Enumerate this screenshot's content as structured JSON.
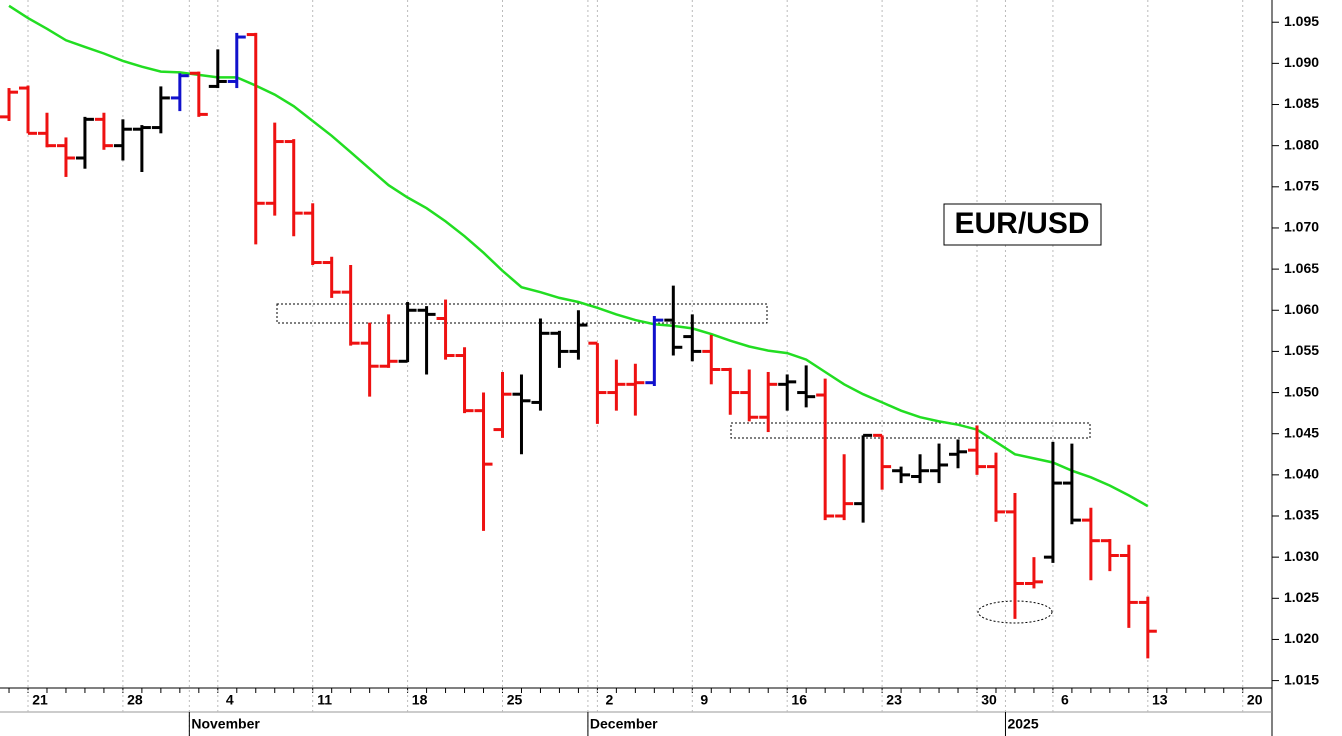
{
  "chart_data": {
    "type": "ohlc",
    "annotation": "EUR/USD",
    "categories": [
      null,
      "21",
      null,
      null,
      null,
      null,
      "28",
      null,
      null,
      null,
      null,
      "4",
      null,
      null,
      null,
      null,
      "11",
      null,
      null,
      null,
      null,
      "18",
      null,
      null,
      null,
      null,
      "25",
      null,
      null,
      null,
      null,
      "2",
      null,
      null,
      null,
      null,
      "9",
      null,
      null,
      null,
      null,
      "16",
      null,
      null,
      null,
      null,
      "23",
      null,
      null,
      null,
      null,
      "30",
      null,
      null,
      null,
      "6",
      null,
      null,
      null,
      null,
      "13",
      null,
      null,
      null,
      null,
      "20"
    ],
    "month_labels": [
      null,
      null,
      null,
      null,
      null,
      null,
      null,
      null,
      null,
      null,
      "November",
      null,
      null,
      null,
      null,
      null,
      null,
      null,
      null,
      null,
      null,
      null,
      null,
      null,
      null,
      null,
      null,
      null,
      null,
      null,
      null,
      "December",
      null,
      null,
      null,
      null,
      null,
      null,
      null,
      null,
      null,
      null,
      null,
      null,
      null,
      null,
      null,
      null,
      null,
      null,
      null,
      null,
      null,
      "2025",
      null,
      null,
      null,
      null,
      null,
      null,
      null,
      null,
      null,
      null,
      null,
      null
    ],
    "open": [
      1.0835,
      1.087,
      1.0815,
      1.08,
      1.0785,
      1.0832,
      1.08,
      1.082,
      1.0822,
      1.0858,
      1.0888,
      1.0872,
      1.0878,
      1.0935,
      1.073,
      1.0805,
      1.0718,
      1.0658,
      1.0622,
      1.056,
      1.0532,
      1.0538,
      1.06,
      1.059,
      1.0545,
      1.0478,
      1.0455,
      1.0498,
      1.0488,
      1.0572,
      1.055,
      1.056,
      1.05,
      1.051,
      1.0512,
      1.0588,
      1.0568,
      1.055,
      1.0528,
      1.05,
      1.047,
      1.051,
      1.05,
      1.0497,
      1.035,
      1.0365,
      1.0448,
      1.0405,
      1.0398,
      1.0405,
      1.0425,
      1.043,
      1.041,
      1.0355,
      1.0268,
      1.03,
      1.039,
      1.0345,
      1.032,
      1.0302,
      1.0245,
      null,
      null,
      null,
      null,
      null
    ],
    "high": [
      1.087,
      1.0873,
      1.084,
      1.081,
      1.0835,
      1.084,
      1.0832,
      1.0825,
      1.0872,
      1.0888,
      1.089,
      1.0917,
      1.0937,
      1.0937,
      1.0828,
      1.0808,
      1.073,
      1.0665,
      1.0655,
      1.0585,
      1.0595,
      1.061,
      1.0605,
      1.0613,
      1.0555,
      1.05,
      1.0525,
      1.0522,
      1.059,
      1.0575,
      1.06,
      1.056,
      1.054,
      1.0535,
      1.0593,
      1.063,
      1.0595,
      1.057,
      1.053,
      1.0528,
      1.0525,
      1.0522,
      1.0533,
      1.0517,
      1.0425,
      1.0448,
      1.0448,
      1.041,
      1.0425,
      1.0438,
      1.0443,
      1.046,
      1.0427,
      1.0378,
      1.03,
      1.044,
      1.0438,
      1.036,
      1.0322,
      1.0315,
      1.0252,
      null,
      null,
      null,
      null,
      null
    ],
    "low": [
      1.083,
      1.0815,
      1.0798,
      1.0762,
      1.0772,
      1.0795,
      1.0782,
      1.0768,
      1.0815,
      1.0842,
      1.0835,
      1.087,
      1.087,
      1.068,
      1.0715,
      1.069,
      1.0655,
      1.0615,
      1.0557,
      1.0495,
      1.053,
      1.0537,
      1.0522,
      1.054,
      1.0475,
      1.0332,
      1.0445,
      1.0425,
      1.0478,
      1.053,
      1.054,
      1.0462,
      1.0478,
      1.0472,
      1.0508,
      1.0545,
      1.0538,
      1.051,
      1.0473,
      1.0465,
      1.0452,
      1.0478,
      1.0482,
      1.0345,
      1.0345,
      1.0342,
      1.0382,
      1.039,
      1.039,
      1.039,
      1.0408,
      1.04,
      1.0343,
      1.0225,
      1.0262,
      1.0293,
      1.034,
      1.0272,
      1.0283,
      1.0214,
      1.0177,
      null,
      null,
      null,
      null,
      null
    ],
    "close": [
      1.0865,
      1.0815,
      1.08,
      1.0785,
      1.0832,
      1.08,
      1.082,
      1.0822,
      1.0858,
      1.0885,
      1.0838,
      1.0878,
      1.0932,
      1.073,
      1.0805,
      1.0718,
      1.0658,
      1.0622,
      1.056,
      1.0532,
      1.0538,
      1.06,
      1.0595,
      1.0545,
      1.0478,
      1.0413,
      1.0498,
      1.049,
      1.0572,
      1.055,
      1.0582,
      1.05,
      1.051,
      1.0512,
      1.0588,
      1.0555,
      1.055,
      1.0528,
      1.05,
      1.047,
      1.051,
      1.0513,
      1.0495,
      1.035,
      1.0365,
      1.0448,
      1.041,
      1.04,
      1.0405,
      1.0412,
      1.0428,
      1.041,
      1.0355,
      1.0268,
      1.027,
      1.039,
      1.0345,
      1.032,
      1.0302,
      1.0245,
      1.021,
      null,
      null,
      null,
      null,
      null
    ],
    "colors": [
      "#ee1111",
      "#ee1111",
      "#ee1111",
      "#ee1111",
      "#000000",
      "#ee1111",
      "#000000",
      "#000000",
      "#000000",
      "#1111cc",
      "#ee1111",
      "#000000",
      "#1111cc",
      "#ee1111",
      "#ee1111",
      "#ee1111",
      "#ee1111",
      "#ee1111",
      "#ee1111",
      "#ee1111",
      "#ee1111",
      "#000000",
      "#000000",
      "#ee1111",
      "#ee1111",
      "#ee1111",
      "#ee1111",
      "#000000",
      "#000000",
      "#000000",
      "#000000",
      "#ee1111",
      "#ee1111",
      "#ee1111",
      "#1111cc",
      "#000000",
      "#000000",
      "#ee1111",
      "#ee1111",
      "#ee1111",
      "#ee1111",
      "#000000",
      "#000000",
      "#ee1111",
      "#ee1111",
      "#000000",
      "#ee1111",
      "#000000",
      "#000000",
      "#000000",
      "#000000",
      "#ee1111",
      "#ee1111",
      "#ee1111",
      "#ee1111",
      "#000000",
      "#000000",
      "#ee1111",
      "#ee1111",
      "#ee1111",
      "#ee1111",
      null,
      null,
      null,
      null,
      null
    ],
    "moving_average": {
      "color": "#22dd22",
      "values": [
        1.097,
        1.0955,
        1.0942,
        1.0928,
        1.092,
        1.0912,
        1.0903,
        1.0896,
        1.089,
        1.0889,
        1.0886,
        1.0883,
        1.0883,
        1.0873,
        1.0862,
        1.0848,
        1.083,
        1.0812,
        1.0792,
        1.0772,
        1.0752,
        1.0737,
        1.0724,
        1.0708,
        1.069,
        1.067,
        1.0648,
        1.0628,
        1.0622,
        1.0615,
        1.061,
        1.0603,
        1.0595,
        1.0588,
        1.0583,
        1.0581,
        1.0578,
        1.0571,
        1.0563,
        1.0556,
        1.0551,
        1.0548,
        1.054,
        1.0525,
        1.051,
        1.0498,
        1.0488,
        1.0478,
        1.047,
        1.0465,
        1.0461,
        1.0455,
        1.044,
        1.0425,
        1.042,
        1.0415,
        1.0405,
        1.0397,
        1.0387,
        1.0375,
        1.0362,
        null,
        null,
        null,
        null,
        null
      ]
    },
    "ylim": [
      1.0141,
      1.0977
    ],
    "yticks": [
      1.015,
      {
        "value": 1.02,
        "label": "1.020"
      },
      1.025,
      {
        "value": 1.03,
        "label": "1.030"
      },
      1.035,
      {
        "value": 1.04,
        "label": "1.040"
      },
      1.045,
      {
        "value": 1.05,
        "label": "1.050"
      },
      1.055,
      {
        "value": 1.06,
        "label": "1.060"
      },
      1.065,
      {
        "value": 1.07,
        "label": "1.070"
      },
      1.075,
      {
        "value": 1.08,
        "label": "1.080"
      },
      1.085,
      {
        "value": 1.09,
        "label": "1.090"
      },
      1.095
    ],
    "grid": true
  }
}
